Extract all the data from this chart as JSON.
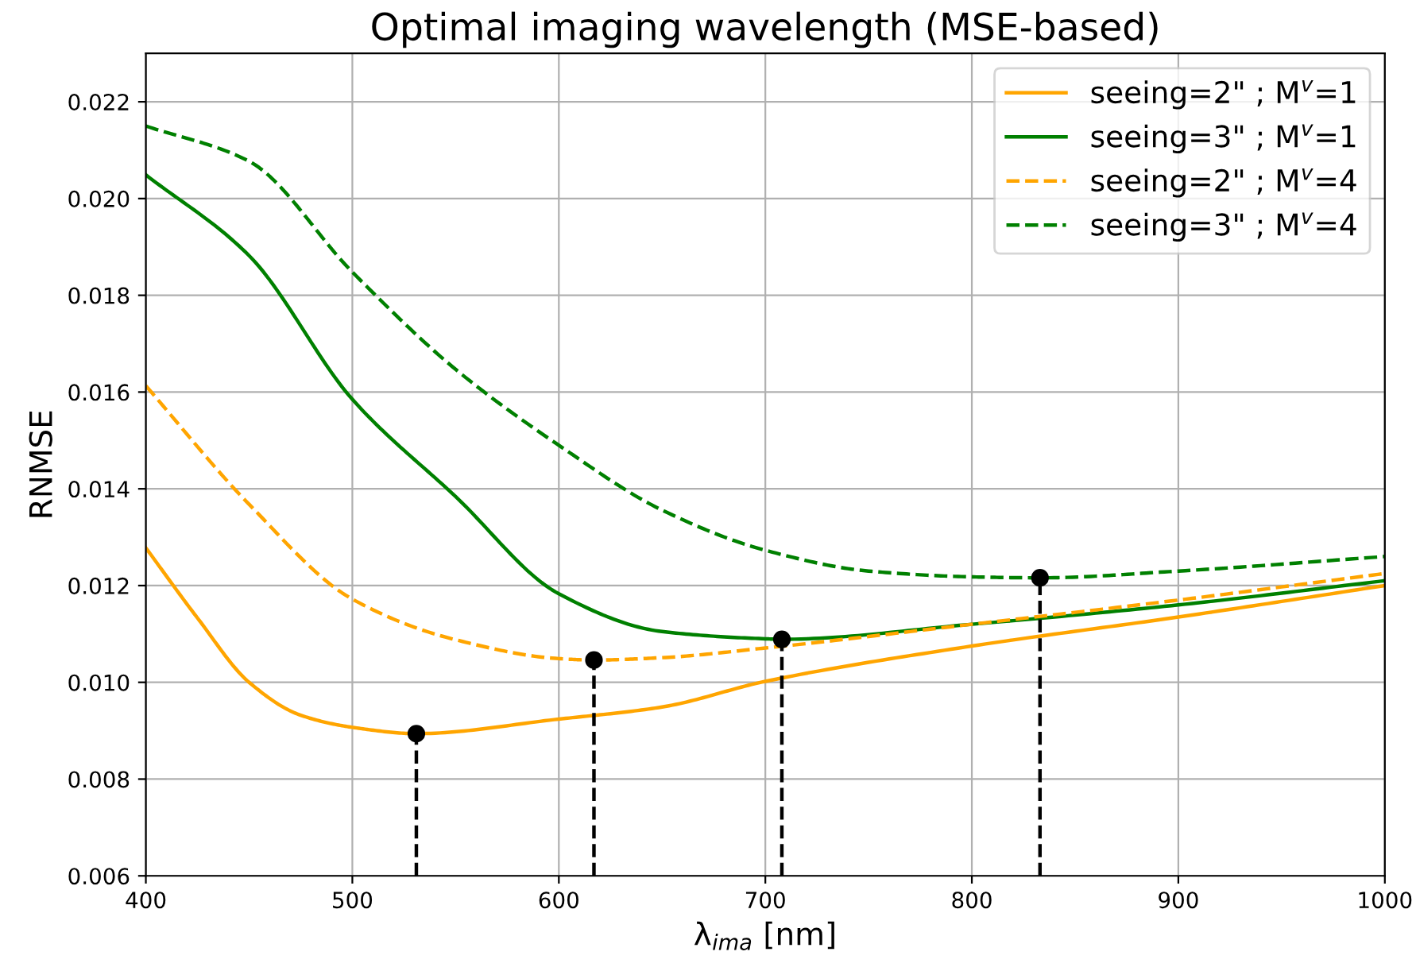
{
  "chart_data": {
    "type": "line",
    "title": "Optimal imaging wavelength (MSE-based)",
    "xlabel": "λ$_{ima}$ [nm]",
    "ylabel": "RNMSE",
    "xlim": [
      400,
      1000
    ],
    "xticks": [
      400,
      500,
      600,
      700,
      800,
      900,
      1000
    ],
    "ylim": [
      0.006,
      0.023
    ],
    "yticks": [
      0.006,
      0.008,
      {
        "value": 0.01,
        "label": "0.010"
      },
      0.012,
      0.014,
      0.016,
      0.018,
      {
        "value": 0.02,
        "label": "0.020"
      },
      0.022
    ],
    "grid": true,
    "legend": "top right",
    "marker": "none",
    "series": [
      {
        "name": "seeing=2\" ; M$^{v}$=1",
        "color": "#ffa500",
        "line_style": "solid",
        "x": [
          400,
          425,
          450,
          475,
          500,
          531,
          600,
          650,
          700,
          800,
          900,
          1000
        ],
        "values": [
          0.01278,
          0.01133,
          0.01,
          0.00932,
          0.00907,
          0.00894,
          0.00924,
          0.00949,
          0.01002,
          0.01075,
          0.01135,
          0.012
        ]
      },
      {
        "name": "seeing=3\" ; M$^{v}$=1",
        "color": "#008000",
        "line_style": "solid",
        "x": [
          400,
          450,
          500,
          550,
          600,
          650,
          700,
          708,
          800,
          900,
          1000
        ],
        "values": [
          0.02049,
          0.01882,
          0.01585,
          0.01384,
          0.01183,
          0.01105,
          0.0109,
          0.01089,
          0.0112,
          0.0116,
          0.0121
        ]
      },
      {
        "name": "seeing=2\" ; M$^{v}$=4",
        "color": "#ffa500",
        "line_style": "dashed",
        "x": [
          400,
          450,
          500,
          550,
          600,
          617,
          650,
          700,
          800,
          900,
          1000
        ],
        "values": [
          0.01613,
          0.01368,
          0.01172,
          0.01088,
          0.01049,
          0.01046,
          0.01051,
          0.01071,
          0.0112,
          0.0117,
          0.01225
        ]
      },
      {
        "name": "seeing=3\" ; M$^{v}$=4",
        "color": "#008000",
        "line_style": "dashed",
        "x": [
          400,
          450,
          500,
          550,
          600,
          650,
          700,
          750,
          800,
          833,
          900,
          1000
        ],
        "values": [
          0.0215,
          0.02077,
          0.01848,
          0.01647,
          0.0149,
          0.01356,
          0.01273,
          0.0123,
          0.01218,
          0.01216,
          0.0123,
          0.0126
        ]
      },
      {
        "type": "lollipop",
        "color": "#000000",
        "line_style": "dashed",
        "marker": "circle",
        "x": [
          531,
          617,
          708,
          833
        ],
        "values": [
          0.00894,
          0.01046,
          0.01089,
          0.01216
        ]
      }
    ]
  }
}
